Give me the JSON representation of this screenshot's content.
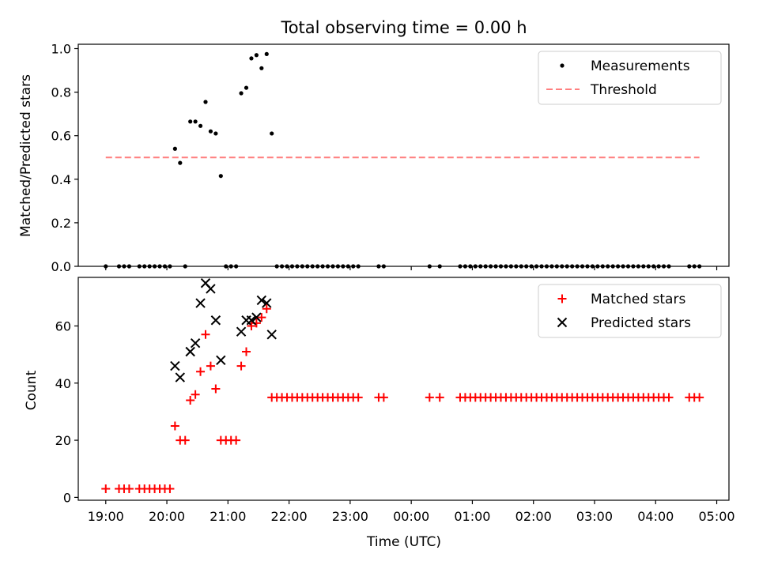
{
  "title": "Total observing time = 0.00 h",
  "xlabel": "Time (UTC)",
  "x_tick_labels": [
    "19:00",
    "20:00",
    "21:00",
    "22:00",
    "23:00",
    "00:00",
    "01:00",
    "02:00",
    "03:00",
    "04:00",
    "05:00"
  ],
  "chart_data": [
    {
      "type": "scatter",
      "panel": "top",
      "ylabel": "Matched/Predicted stars",
      "xlim": [
        "18:33",
        "05:12"
      ],
      "ylim": [
        0,
        1.02
      ],
      "y_ticks": [
        "0.0",
        "0.2",
        "0.4",
        "0.6",
        "0.8",
        "1.0"
      ],
      "legend_position": "top-right",
      "series": [
        {
          "name": "Measurements",
          "marker": "dot",
          "color": "#000000",
          "points": [
            [
              "19:00",
              0
            ],
            [
              "19:13",
              0
            ],
            [
              "19:18",
              0
            ],
            [
              "19:23",
              0
            ],
            [
              "19:33",
              0
            ],
            [
              "19:38",
              0
            ],
            [
              "19:43",
              0
            ],
            [
              "19:48",
              0
            ],
            [
              "19:53",
              0
            ],
            [
              "19:58",
              0
            ],
            [
              "20:03",
              0
            ],
            [
              "20:08",
              0.54
            ],
            [
              "20:13",
              0.475
            ],
            [
              "20:18",
              0
            ],
            [
              "20:23",
              0.665
            ],
            [
              "20:28",
              0.665
            ],
            [
              "20:33",
              0.645
            ],
            [
              "20:38",
              0.755
            ],
            [
              "20:43",
              0.62
            ],
            [
              "20:48",
              0.61
            ],
            [
              "20:53",
              0.415
            ],
            [
              "20:58",
              0
            ],
            [
              "21:03",
              0
            ],
            [
              "21:08",
              0
            ],
            [
              "21:13",
              0.795
            ],
            [
              "21:18",
              0.82
            ],
            [
              "21:23",
              0.955
            ],
            [
              "21:28",
              0.97
            ],
            [
              "21:33",
              0.91
            ],
            [
              "21:38",
              0.975
            ],
            [
              "21:43",
              0.61
            ],
            [
              "21:48",
              0
            ],
            [
              "21:53",
              0
            ],
            [
              "21:58",
              0
            ],
            [
              "22:03",
              0
            ],
            [
              "22:08",
              0
            ],
            [
              "22:13",
              0
            ],
            [
              "22:18",
              0
            ],
            [
              "22:23",
              0
            ],
            [
              "22:28",
              0
            ],
            [
              "22:33",
              0
            ],
            [
              "22:38",
              0
            ],
            [
              "22:43",
              0
            ],
            [
              "22:48",
              0
            ],
            [
              "22:53",
              0
            ],
            [
              "22:58",
              0
            ],
            [
              "23:03",
              0
            ],
            [
              "23:08",
              0
            ],
            [
              "23:28",
              0
            ],
            [
              "23:33",
              0
            ],
            [
              "00:18",
              0
            ],
            [
              "00:28",
              0
            ],
            [
              "00:48",
              0
            ],
            [
              "00:53",
              0
            ],
            [
              "00:58",
              0
            ],
            [
              "01:03",
              0
            ],
            [
              "01:08",
              0
            ],
            [
              "01:13",
              0
            ],
            [
              "01:18",
              0
            ],
            [
              "01:23",
              0
            ],
            [
              "01:28",
              0
            ],
            [
              "01:33",
              0
            ],
            [
              "01:38",
              0
            ],
            [
              "01:43",
              0
            ],
            [
              "01:48",
              0
            ],
            [
              "01:53",
              0
            ],
            [
              "01:58",
              0
            ],
            [
              "02:03",
              0
            ],
            [
              "02:08",
              0
            ],
            [
              "02:13",
              0
            ],
            [
              "02:18",
              0
            ],
            [
              "02:23",
              0
            ],
            [
              "02:28",
              0
            ],
            [
              "02:33",
              0
            ],
            [
              "02:38",
              0
            ],
            [
              "02:43",
              0
            ],
            [
              "02:48",
              0
            ],
            [
              "02:53",
              0
            ],
            [
              "02:58",
              0
            ],
            [
              "03:03",
              0
            ],
            [
              "03:08",
              0
            ],
            [
              "03:13",
              0
            ],
            [
              "03:18",
              0
            ],
            [
              "03:23",
              0
            ],
            [
              "03:28",
              0
            ],
            [
              "03:33",
              0
            ],
            [
              "03:38",
              0
            ],
            [
              "03:43",
              0
            ],
            [
              "03:48",
              0
            ],
            [
              "03:53",
              0
            ],
            [
              "03:58",
              0
            ],
            [
              "04:03",
              0
            ],
            [
              "04:08",
              0
            ],
            [
              "04:13",
              0
            ],
            [
              "04:33",
              0
            ],
            [
              "04:38",
              0
            ],
            [
              "04:43",
              0
            ]
          ]
        },
        {
          "name": "Threshold",
          "marker": "dashed-line",
          "color": "#ff7f7f",
          "points": [
            [
              "19:00",
              0.5
            ],
            [
              "04:43",
              0.5
            ]
          ]
        }
      ]
    },
    {
      "type": "scatter",
      "panel": "bottom",
      "ylabel": "Count",
      "xlim": [
        "18:33",
        "05:12"
      ],
      "ylim": [
        -1,
        77
      ],
      "y_ticks": [
        "0",
        "20",
        "40",
        "60"
      ],
      "legend_position": "top-right",
      "series": [
        {
          "name": "Matched stars",
          "marker": "plus",
          "color": "#ff0000",
          "points": [
            [
              "19:00",
              3
            ],
            [
              "19:13",
              3
            ],
            [
              "19:18",
              3
            ],
            [
              "19:23",
              3
            ],
            [
              "19:33",
              3
            ],
            [
              "19:38",
              3
            ],
            [
              "19:43",
              3
            ],
            [
              "19:48",
              3
            ],
            [
              "19:53",
              3
            ],
            [
              "19:58",
              3
            ],
            [
              "20:03",
              3
            ],
            [
              "20:08",
              25
            ],
            [
              "20:13",
              20
            ],
            [
              "20:18",
              20
            ],
            [
              "20:23",
              34
            ],
            [
              "20:28",
              36
            ],
            [
              "20:33",
              44
            ],
            [
              "20:38",
              57
            ],
            [
              "20:43",
              46
            ],
            [
              "20:48",
              38
            ],
            [
              "20:53",
              20
            ],
            [
              "20:58",
              20
            ],
            [
              "21:03",
              20
            ],
            [
              "21:08",
              20
            ],
            [
              "21:13",
              46
            ],
            [
              "21:18",
              51
            ],
            [
              "21:23",
              60
            ],
            [
              "21:28",
              61
            ],
            [
              "21:33",
              63
            ],
            [
              "21:38",
              66
            ],
            [
              "21:43",
              35
            ],
            [
              "21:48",
              35
            ],
            [
              "21:53",
              35
            ],
            [
              "21:58",
              35
            ],
            [
              "22:03",
              35
            ],
            [
              "22:08",
              35
            ],
            [
              "22:13",
              35
            ],
            [
              "22:18",
              35
            ],
            [
              "22:23",
              35
            ],
            [
              "22:28",
              35
            ],
            [
              "22:33",
              35
            ],
            [
              "22:38",
              35
            ],
            [
              "22:43",
              35
            ],
            [
              "22:48",
              35
            ],
            [
              "22:53",
              35
            ],
            [
              "22:58",
              35
            ],
            [
              "23:03",
              35
            ],
            [
              "23:08",
              35
            ],
            [
              "23:28",
              35
            ],
            [
              "23:33",
              35
            ],
            [
              "00:18",
              35
            ],
            [
              "00:28",
              35
            ],
            [
              "00:48",
              35
            ],
            [
              "00:53",
              35
            ],
            [
              "00:58",
              35
            ],
            [
              "01:03",
              35
            ],
            [
              "01:08",
              35
            ],
            [
              "01:13",
              35
            ],
            [
              "01:18",
              35
            ],
            [
              "01:23",
              35
            ],
            [
              "01:28",
              35
            ],
            [
              "01:33",
              35
            ],
            [
              "01:38",
              35
            ],
            [
              "01:43",
              35
            ],
            [
              "01:48",
              35
            ],
            [
              "01:53",
              35
            ],
            [
              "01:58",
              35
            ],
            [
              "02:03",
              35
            ],
            [
              "02:08",
              35
            ],
            [
              "02:13",
              35
            ],
            [
              "02:18",
              35
            ],
            [
              "02:23",
              35
            ],
            [
              "02:28",
              35
            ],
            [
              "02:33",
              35
            ],
            [
              "02:38",
              35
            ],
            [
              "02:43",
              35
            ],
            [
              "02:48",
              35
            ],
            [
              "02:53",
              35
            ],
            [
              "02:58",
              35
            ],
            [
              "03:03",
              35
            ],
            [
              "03:08",
              35
            ],
            [
              "03:13",
              35
            ],
            [
              "03:18",
              35
            ],
            [
              "03:23",
              35
            ],
            [
              "03:28",
              35
            ],
            [
              "03:33",
              35
            ],
            [
              "03:38",
              35
            ],
            [
              "03:43",
              35
            ],
            [
              "03:48",
              35
            ],
            [
              "03:53",
              35
            ],
            [
              "03:58",
              35
            ],
            [
              "04:03",
              35
            ],
            [
              "04:08",
              35
            ],
            [
              "04:13",
              35
            ],
            [
              "04:33",
              35
            ],
            [
              "04:38",
              35
            ],
            [
              "04:43",
              35
            ]
          ]
        },
        {
          "name": "Predicted stars",
          "marker": "x",
          "color": "#000000",
          "points": [
            [
              "20:08",
              46
            ],
            [
              "20:13",
              42
            ],
            [
              "20:23",
              51
            ],
            [
              "20:28",
              54
            ],
            [
              "20:33",
              68
            ],
            [
              "20:38",
              75
            ],
            [
              "20:43",
              73
            ],
            [
              "20:48",
              62
            ],
            [
              "20:53",
              48
            ],
            [
              "21:13",
              58
            ],
            [
              "21:18",
              62
            ],
            [
              "21:23",
              62
            ],
            [
              "21:28",
              63
            ],
            [
              "21:33",
              69
            ],
            [
              "21:38",
              68
            ],
            [
              "21:43",
              57
            ]
          ]
        }
      ]
    }
  ]
}
